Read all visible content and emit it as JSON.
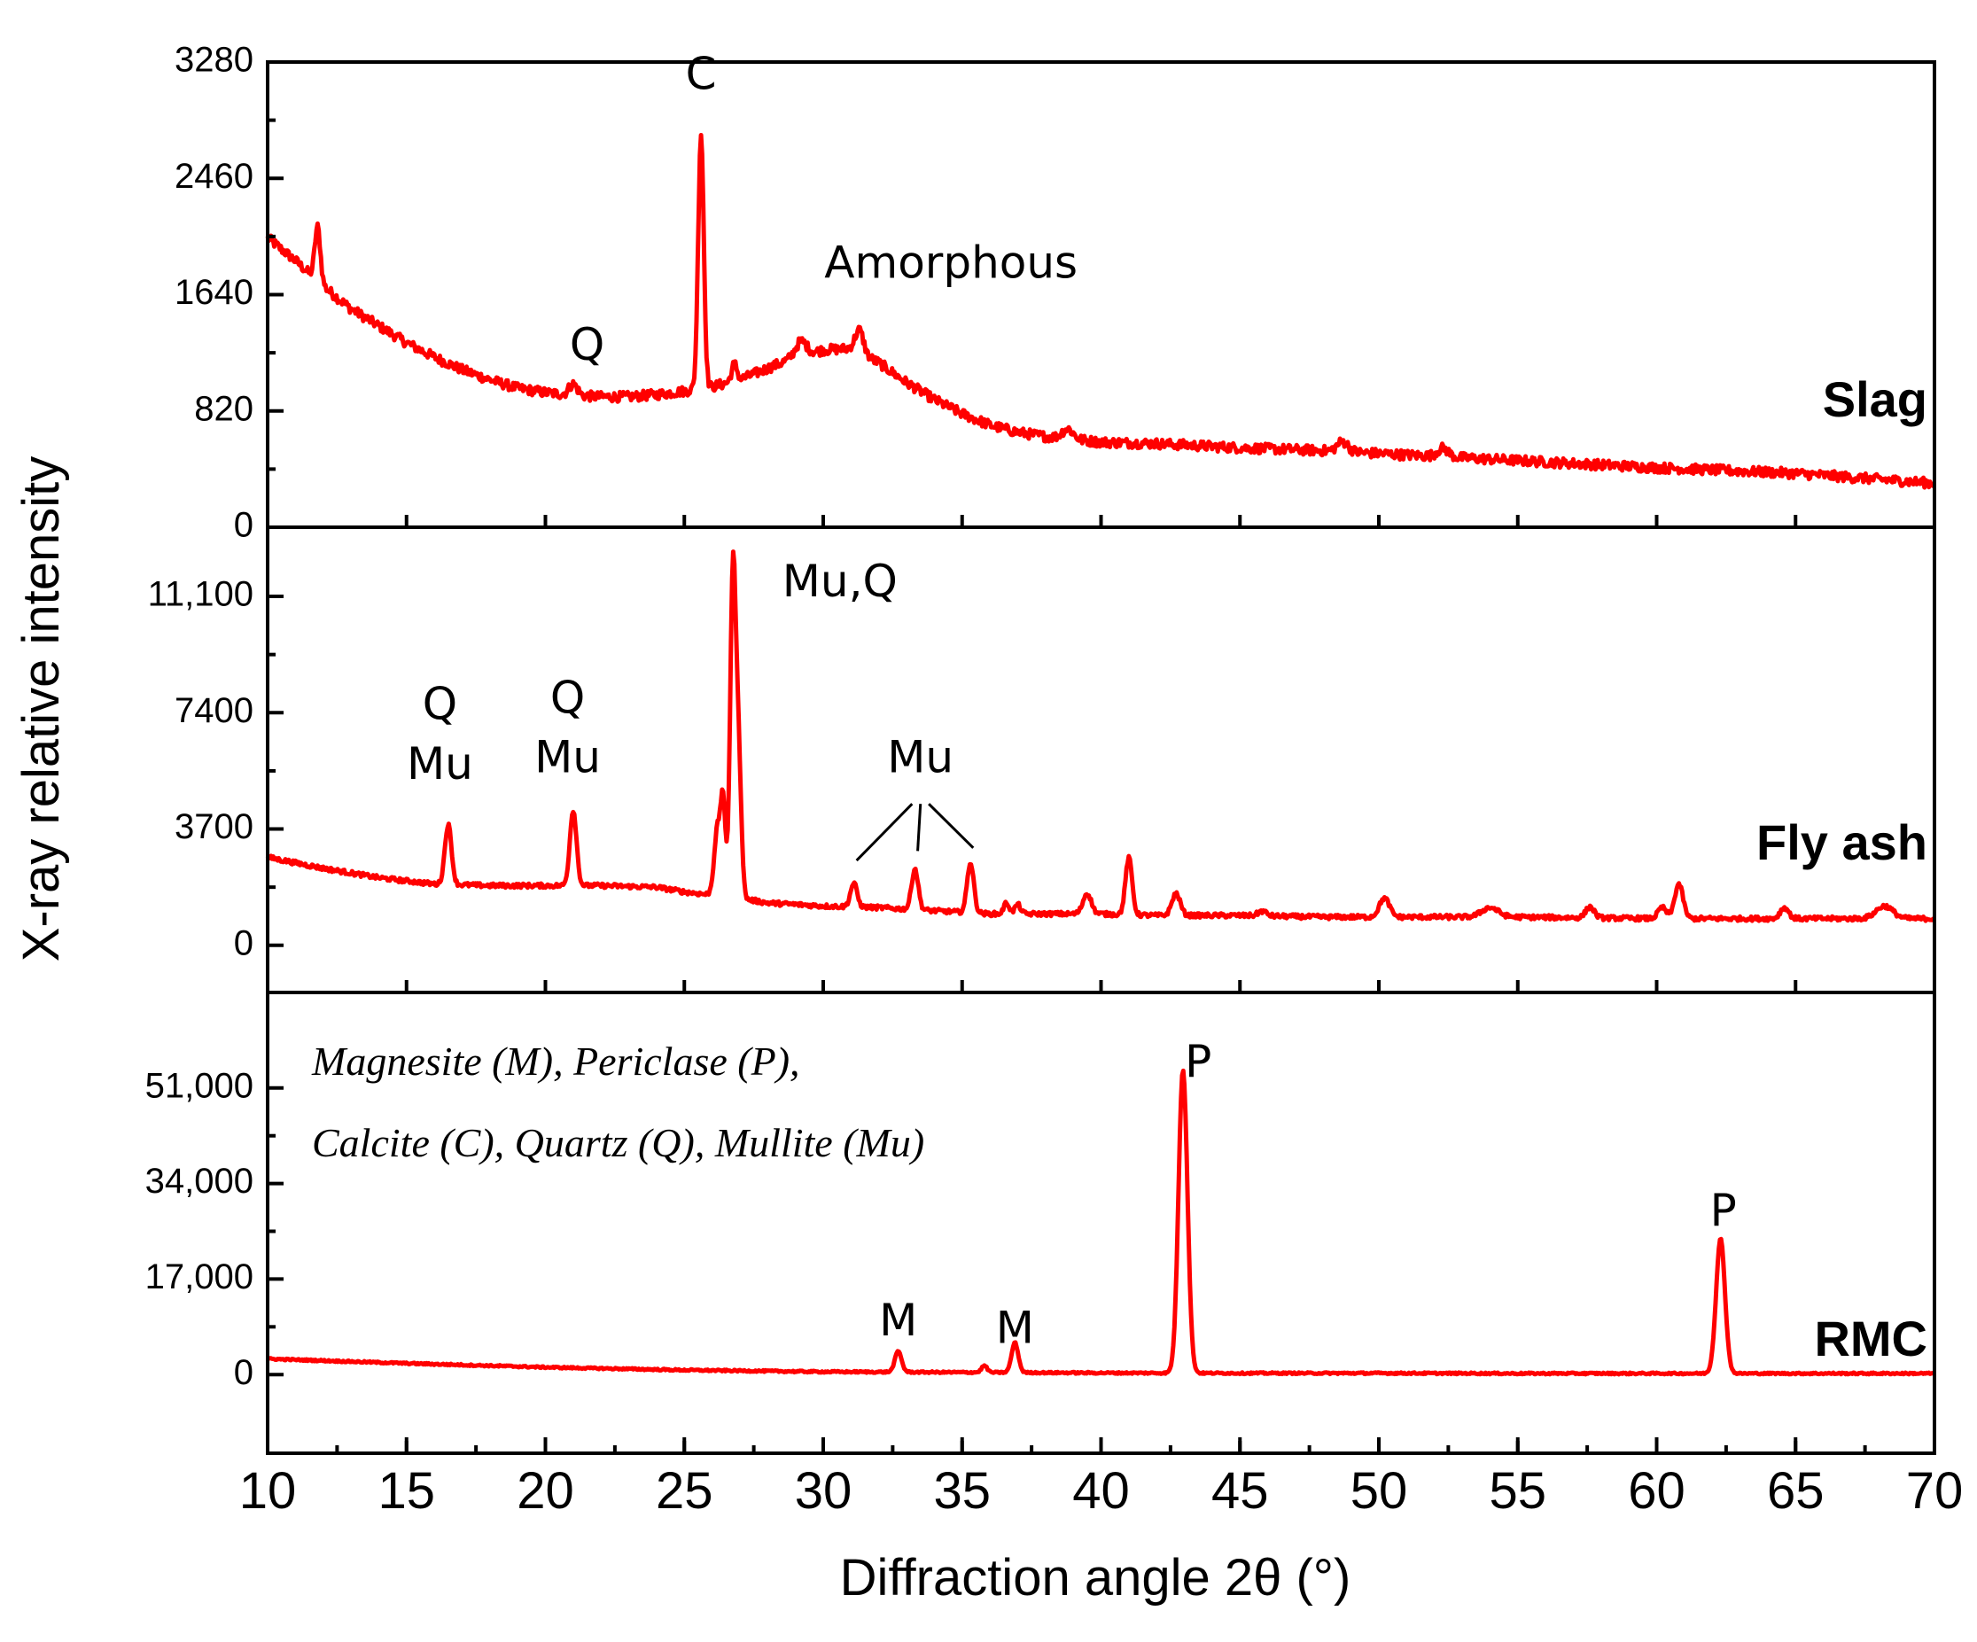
{
  "chart_data": {
    "type": "line",
    "title": "",
    "xlabel": "Diffraction angle 2θ (°)",
    "ylabel": "X-ray relative intensity",
    "xlim": [
      10,
      70
    ],
    "x_ticks": [
      "10",
      "15",
      "20",
      "25",
      "30",
      "35",
      "40",
      "45",
      "50",
      "55",
      "60",
      "65",
      "70"
    ],
    "series_color": "#ff0000",
    "legend_note": [
      "Magnesite (M), Periclase (P),",
      "Calcite (C), Quartz (Q), Mullite (Mu)"
    ],
    "panels": [
      {
        "name": "Slag",
        "ylim": [
          0,
          3280
        ],
        "y_ticks": [
          0,
          820,
          1640,
          2460,
          3280
        ],
        "y_tick_labels": [
          "0",
          "820",
          "1640",
          "2460",
          "3280"
        ],
        "baseline": [
          [
            10,
            2040
          ],
          [
            11,
            1880
          ],
          [
            12,
            1700
          ],
          [
            13,
            1540
          ],
          [
            14,
            1420
          ],
          [
            15,
            1300
          ],
          [
            16,
            1200
          ],
          [
            17,
            1110
          ],
          [
            18,
            1040
          ],
          [
            19,
            980
          ],
          [
            20,
            950
          ],
          [
            21,
            930
          ],
          [
            22,
            920
          ],
          [
            23,
            920
          ],
          [
            24,
            935
          ],
          [
            25,
            960
          ],
          [
            26,
            990
          ],
          [
            27,
            1040
          ],
          [
            28,
            1120
          ],
          [
            29,
            1200
          ],
          [
            30,
            1250
          ],
          [
            31,
            1260
          ],
          [
            32,
            1160
          ],
          [
            33,
            1020
          ],
          [
            34,
            900
          ],
          [
            35,
            800
          ],
          [
            36,
            720
          ],
          [
            37,
            670
          ],
          [
            38,
            640
          ],
          [
            39,
            620
          ],
          [
            40,
            600
          ],
          [
            42,
            590
          ],
          [
            45,
            560
          ],
          [
            48,
            540
          ],
          [
            50,
            520
          ],
          [
            55,
            470
          ],
          [
            60,
            420
          ],
          [
            65,
            380
          ],
          [
            70,
            310
          ]
        ],
        "peaks": [
          [
            11.8,
            380,
            0.1
          ],
          [
            21,
            80,
            0.15
          ],
          [
            25.6,
            1800,
            0.1
          ],
          [
            26.8,
            120,
            0.1
          ],
          [
            29.2,
            100,
            0.2
          ],
          [
            31.3,
            160,
            0.15
          ],
          [
            38.8,
            70,
            0.2
          ],
          [
            48.7,
            70,
            0.2
          ],
          [
            52.3,
            60,
            0.2
          ]
        ],
        "noise": 35,
        "annotations": [
          {
            "text": "C",
            "x": 25.6,
            "y": 3090
          },
          {
            "text": "Q",
            "x": 21.5,
            "y": 1180
          },
          {
            "text": "Amorphous",
            "x": 34.6,
            "y": 1760
          }
        ]
      },
      {
        "name": "Fly ash",
        "ylim": [
          -1500,
          13300
        ],
        "y_ticks": [
          0,
          3700,
          7400,
          11100
        ],
        "y_tick_labels": [
          "0",
          "3700",
          "7400",
          "11,100"
        ],
        "baseline": [
          [
            10,
            2800
          ],
          [
            12,
            2450
          ],
          [
            14,
            2150
          ],
          [
            16,
            1950
          ],
          [
            18,
            1900
          ],
          [
            20,
            1900
          ],
          [
            22,
            1900
          ],
          [
            24,
            1850
          ],
          [
            25,
            1700
          ],
          [
            26,
            1600
          ],
          [
            27,
            1500
          ],
          [
            28,
            1350
          ],
          [
            30,
            1250
          ],
          [
            32,
            1200
          ],
          [
            34,
            1100
          ],
          [
            36,
            1000
          ],
          [
            38,
            1000
          ],
          [
            40,
            1000
          ],
          [
            42,
            950
          ],
          [
            45,
            950
          ],
          [
            48,
            900
          ],
          [
            50,
            900
          ],
          [
            55,
            900
          ],
          [
            60,
            850
          ],
          [
            65,
            850
          ],
          [
            70,
            850
          ]
        ],
        "peaks": [
          [
            16.5,
            1900,
            0.12
          ],
          [
            21.0,
            2400,
            0.12
          ],
          [
            26.2,
            2200,
            0.12
          ],
          [
            26.4,
            2800,
            0.08
          ],
          [
            26.75,
            10300,
            0.1
          ],
          [
            26.95,
            4500,
            0.1
          ],
          [
            31.1,
            750,
            0.12
          ],
          [
            33.3,
            1300,
            0.12
          ],
          [
            35.3,
            1600,
            0.12
          ],
          [
            36.6,
            350,
            0.1
          ],
          [
            37.0,
            300,
            0.1
          ],
          [
            39.5,
            650,
            0.15
          ],
          [
            41.0,
            1800,
            0.12
          ],
          [
            42.7,
            700,
            0.15
          ],
          [
            45.8,
            150,
            0.15
          ],
          [
            50.2,
            600,
            0.18
          ],
          [
            54.0,
            300,
            0.3
          ],
          [
            57.6,
            350,
            0.15
          ],
          [
            60.2,
            350,
            0.15
          ],
          [
            60.8,
            1100,
            0.15
          ],
          [
            64.6,
            350,
            0.15
          ],
          [
            68.2,
            400,
            0.3
          ]
        ],
        "noise": 70,
        "annotations": [
          {
            "text": "Mu,Q",
            "x": 30.6,
            "y": 11100
          },
          {
            "text": "Q",
            "x": 16.2,
            "y": 7200
          },
          {
            "text": "Mu",
            "x": 16.2,
            "y": 5300
          },
          {
            "text": "Q",
            "x": 20.8,
            "y": 7400
          },
          {
            "text": "Mu",
            "x": 20.8,
            "y": 5500
          },
          {
            "text": "Mu",
            "x": 33.5,
            "y": 5500
          }
        ],
        "leaders": [
          [
            [
              33.2,
              4500
            ],
            [
              31.2,
              2700
            ]
          ],
          [
            [
              33.5,
              4500
            ],
            [
              33.4,
              3000
            ]
          ],
          [
            [
              33.8,
              4500
            ],
            [
              35.4,
              3100
            ]
          ]
        ]
      },
      {
        "name": "RMC",
        "ylim": [
          -14000,
          68000
        ],
        "y_ticks": [
          0,
          17000,
          34000,
          51000
        ],
        "y_tick_labels": [
          "0",
          "17,000",
          "34,000",
          "51,000"
        ],
        "baseline": [
          [
            10,
            2800
          ],
          [
            15,
            2000
          ],
          [
            20,
            1300
          ],
          [
            25,
            800
          ],
          [
            30,
            500
          ],
          [
            35,
            400
          ],
          [
            40,
            300
          ],
          [
            45,
            250
          ],
          [
            50,
            250
          ],
          [
            55,
            200
          ],
          [
            60,
            200
          ],
          [
            65,
            200
          ],
          [
            70,
            200
          ]
        ],
        "peaks": [
          [
            32.7,
            3700,
            0.12
          ],
          [
            35.8,
            1200,
            0.1
          ],
          [
            36.9,
            5300,
            0.12
          ],
          [
            42.95,
            54000,
            0.16
          ],
          [
            62.3,
            24000,
            0.16
          ]
        ],
        "noise": 150,
        "annotations": [
          {
            "text": "P",
            "x": 43.5,
            "y": 53000
          },
          {
            "text": "P",
            "x": 62.4,
            "y": 26500
          },
          {
            "text": "M",
            "x": 32.7,
            "y": 7000
          },
          {
            "text": "M",
            "x": 36.9,
            "y": 5600
          }
        ]
      }
    ]
  }
}
